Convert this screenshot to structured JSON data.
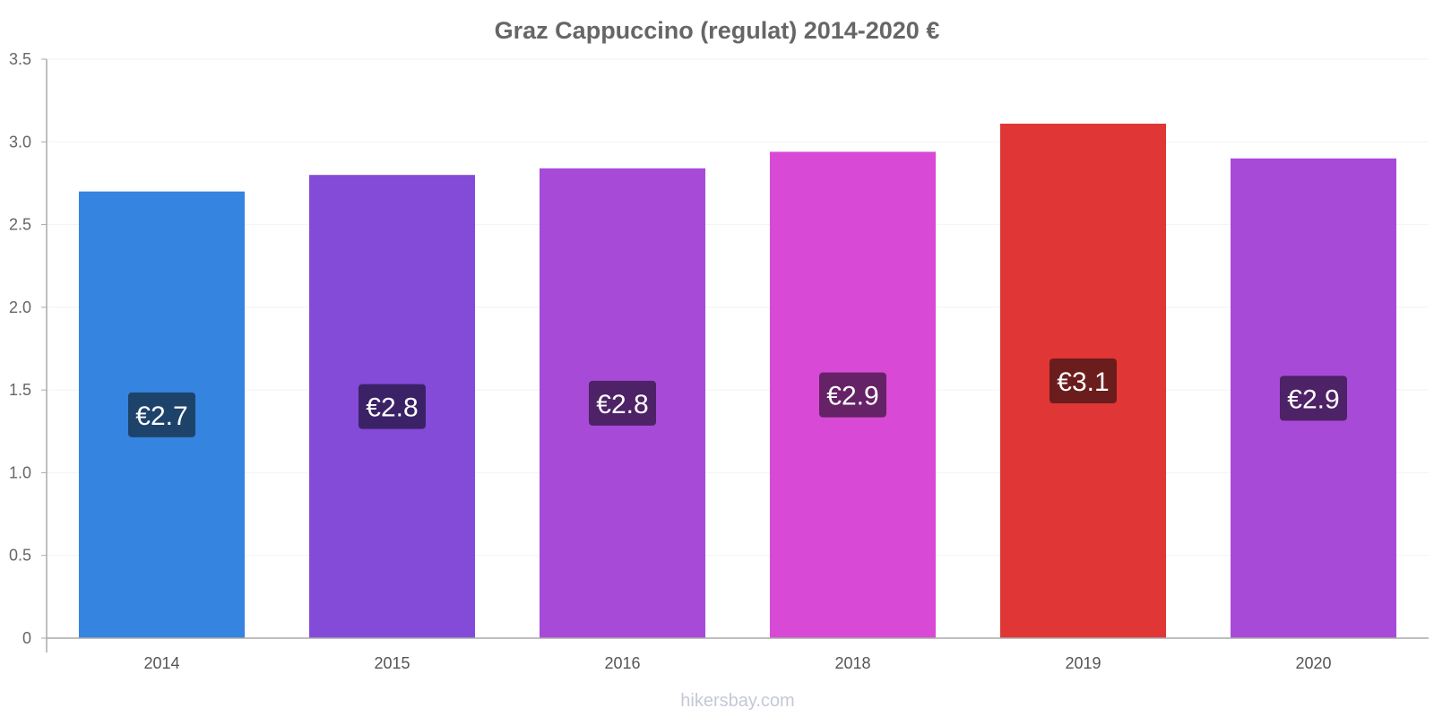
{
  "chart_data": {
    "type": "bar",
    "title": "Graz Cappuccino (regulat) 2014-2020 €",
    "categories": [
      "2014",
      "2015",
      "2016",
      "2018",
      "2019",
      "2020"
    ],
    "values": [
      2.7,
      2.8,
      2.84,
      2.94,
      3.11,
      2.9
    ],
    "data_labels": [
      "€2.7",
      "€2.8",
      "€2.8",
      "€2.9",
      "€3.1",
      "€2.9"
    ],
    "bar_colors": [
      "#3584e0",
      "#834bd8",
      "#a84ad8",
      "#d84ad5",
      "#e03636",
      "#a84ad8"
    ],
    "label_box_colors": [
      "#1e436b",
      "#3b2266",
      "#4e2266",
      "#652266",
      "#6b1c1c",
      "#4e2266"
    ],
    "yticks": [
      "0",
      "0.5",
      "1.0",
      "1.5",
      "2.0",
      "2.5",
      "3.0",
      "3.5"
    ],
    "ylim": [
      0,
      3.5
    ],
    "xlabel": "",
    "ylabel": "",
    "grid": true
  },
  "footer": "hikersbay.com"
}
